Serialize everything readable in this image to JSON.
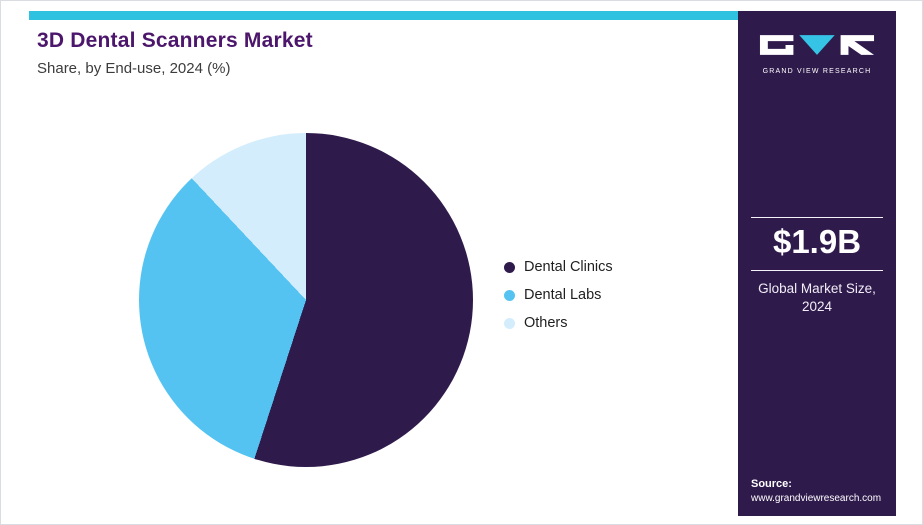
{
  "colors": {
    "accent_cyan": "#2fc1e0",
    "brand_purple": "#2f1a4c",
    "pie_blue": "#55c3f1",
    "pie_light_blue": "#d3edfc",
    "title_purple": "#4b166b"
  },
  "chart_data": {
    "type": "pie",
    "title": "3D Dental Scanners Market",
    "subtitle": "Share, by End-use, 2024 (%)",
    "categories": [
      "Dental Clinics",
      "Dental Labs",
      "Others"
    ],
    "series": [
      {
        "name": "Dental Clinics",
        "value": 55,
        "color": "#2f1a4c"
      },
      {
        "name": "Dental Labs",
        "value": 33,
        "color": "#55c3f1"
      },
      {
        "name": "Others",
        "value": 12,
        "color": "#d3edfc"
      }
    ],
    "start_angle_deg": 0,
    "direction": "clockwise",
    "legend_position": "right",
    "data_labels": false
  },
  "sidebar": {
    "logo_text": "GRAND VIEW RESEARCH",
    "market_size": "$1.9B",
    "market_size_label": "Global Market Size, 2024",
    "source_label": "Source:",
    "source_url": "www.grandviewresearch.com"
  }
}
